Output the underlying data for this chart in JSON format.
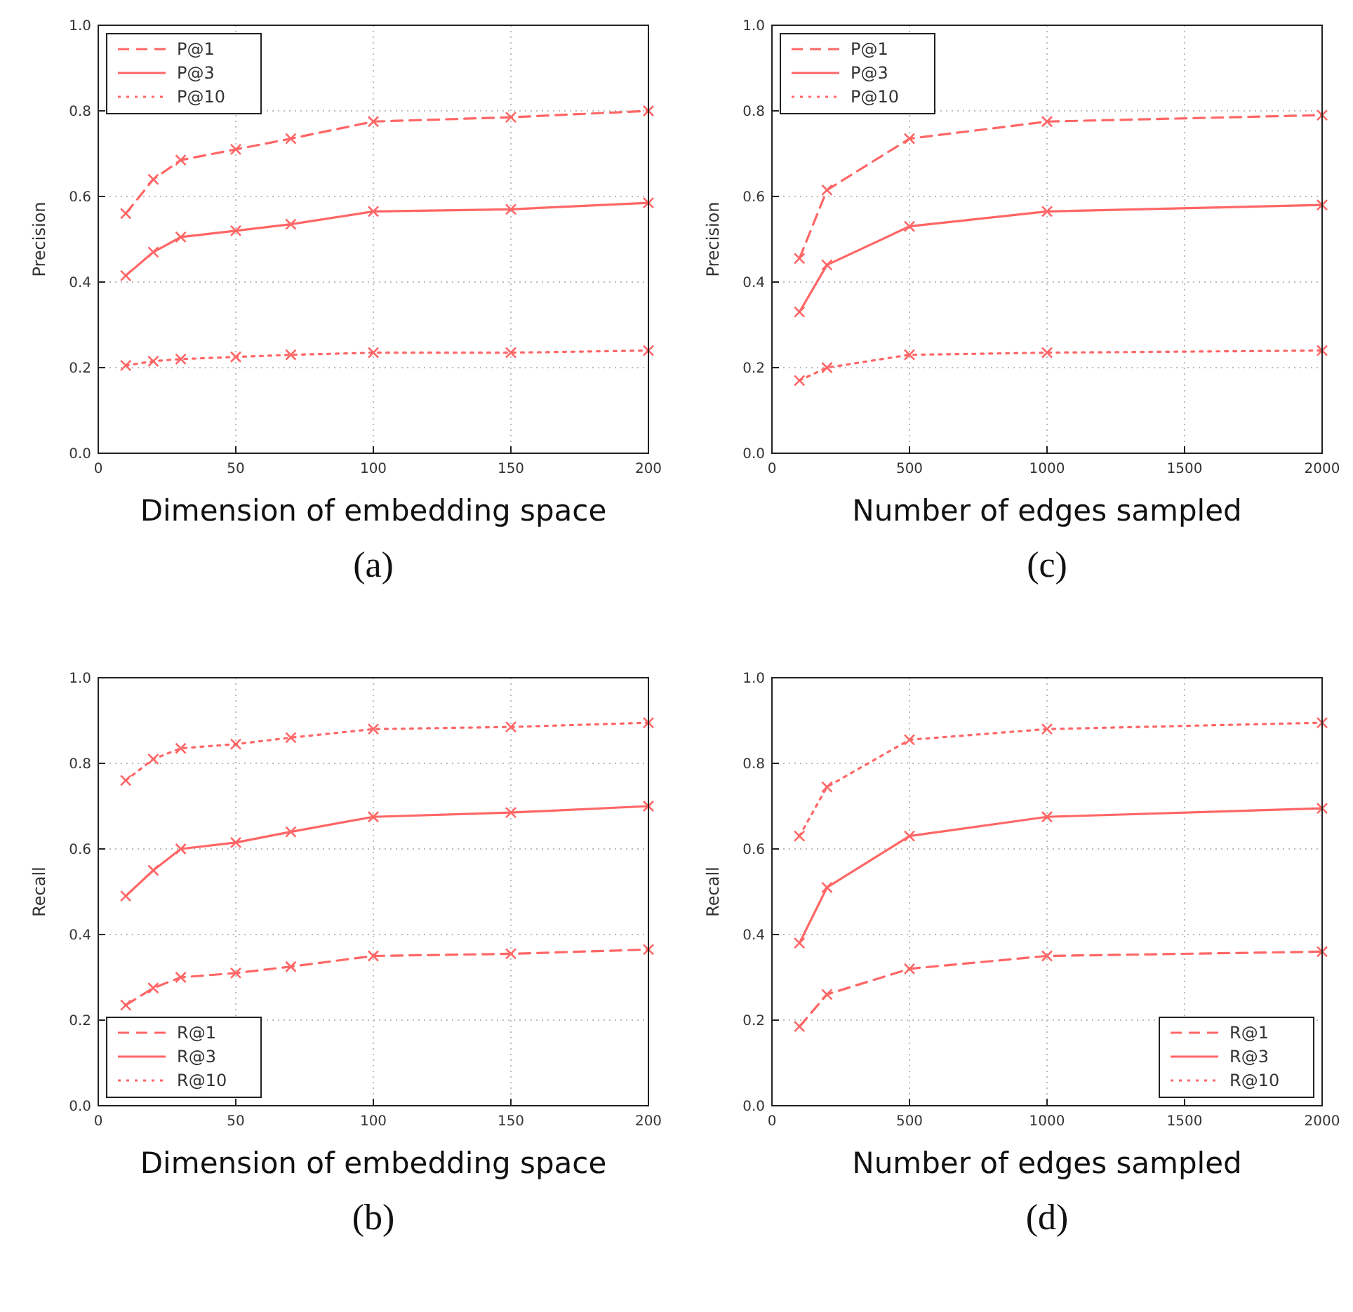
{
  "chart_data": [
    {
      "type": "line",
      "ylabel": "Precision",
      "xlabel": "Dimension of embedding space",
      "annotations": [
        "(a)"
      ],
      "x": [
        10,
        20,
        30,
        50,
        70,
        100,
        150,
        200
      ],
      "xlim": [
        0,
        200
      ],
      "xticks": [
        0,
        50,
        100,
        150,
        200
      ],
      "ylim": [
        0,
        1
      ],
      "yticks": [
        {
          "value": 0,
          "label": "0.0"
        },
        {
          "value": 0.2,
          "label": "0.2"
        },
        {
          "value": 0.4,
          "label": "0.4"
        },
        {
          "value": 0.6,
          "label": "0.6"
        },
        {
          "value": 0.8,
          "label": "0.8"
        },
        {
          "value": 1,
          "label": "1.0"
        }
      ],
      "grid": true,
      "legend": "top left",
      "marker": "cross",
      "series": [
        {
          "name": "P@1",
          "color": "#ff6666",
          "line_style": "dashed",
          "values": [
            0.56,
            0.64,
            0.685,
            0.71,
            0.735,
            0.775,
            0.785,
            0.8
          ]
        },
        {
          "name": "P@3",
          "color": "#ff6666",
          "line_style": "solid",
          "values": [
            0.415,
            0.47,
            0.505,
            0.52,
            0.535,
            0.565,
            0.57,
            0.585
          ]
        },
        {
          "name": "P@10",
          "color": "#ff6666",
          "line_style": "dotted",
          "values": [
            0.205,
            0.215,
            0.22,
            0.225,
            0.23,
            0.235,
            0.235,
            0.24
          ]
        }
      ]
    },
    {
      "type": "line",
      "ylabel": "Precision",
      "xlabel": "Number of edges sampled",
      "annotations": [
        "(c)"
      ],
      "x": [
        100,
        200,
        500,
        1000,
        2000
      ],
      "xlim": [
        0,
        2000
      ],
      "xticks": [
        0,
        500,
        1000,
        1500,
        2000
      ],
      "ylim": [
        0,
        1
      ],
      "yticks": [
        {
          "value": 0,
          "label": "0.0"
        },
        {
          "value": 0.2,
          "label": "0.2"
        },
        {
          "value": 0.4,
          "label": "0.4"
        },
        {
          "value": 0.6,
          "label": "0.6"
        },
        {
          "value": 0.8,
          "label": "0.8"
        },
        {
          "value": 1,
          "label": "1.0"
        }
      ],
      "grid": true,
      "legend": "top left",
      "marker": "cross",
      "series": [
        {
          "name": "P@1",
          "color": "#ff6666",
          "line_style": "dashed",
          "values": [
            0.455,
            0.615,
            0.735,
            0.775,
            0.79
          ]
        },
        {
          "name": "P@3",
          "color": "#ff6666",
          "line_style": "solid",
          "values": [
            0.33,
            0.44,
            0.53,
            0.565,
            0.58
          ]
        },
        {
          "name": "P@10",
          "color": "#ff6666",
          "line_style": "dotted",
          "values": [
            0.17,
            0.2,
            0.23,
            0.235,
            0.24
          ]
        }
      ]
    },
    {
      "type": "line",
      "ylabel": "Recall",
      "xlabel": "Dimension of embedding space",
      "annotations": [
        "(b)"
      ],
      "x": [
        10,
        20,
        30,
        50,
        70,
        100,
        150,
        200
      ],
      "xlim": [
        0,
        200
      ],
      "xticks": [
        0,
        50,
        100,
        150,
        200
      ],
      "ylim": [
        0,
        1
      ],
      "yticks": [
        {
          "value": 0,
          "label": "0.0"
        },
        {
          "value": 0.2,
          "label": "0.2"
        },
        {
          "value": 0.4,
          "label": "0.4"
        },
        {
          "value": 0.6,
          "label": "0.6"
        },
        {
          "value": 0.8,
          "label": "0.8"
        },
        {
          "value": 1,
          "label": "1.0"
        }
      ],
      "grid": true,
      "legend": "bottom left",
      "marker": "cross",
      "series": [
        {
          "name": "R@1",
          "color": "#ff6666",
          "line_style": "dashed",
          "values": [
            0.235,
            0.275,
            0.3,
            0.31,
            0.325,
            0.35,
            0.355,
            0.365
          ]
        },
        {
          "name": "R@3",
          "color": "#ff6666",
          "line_style": "solid",
          "values": [
            0.49,
            0.55,
            0.6,
            0.615,
            0.64,
            0.675,
            0.685,
            0.7
          ]
        },
        {
          "name": "R@10",
          "color": "#ff6666",
          "line_style": "dotted",
          "values": [
            0.76,
            0.81,
            0.835,
            0.845,
            0.86,
            0.88,
            0.885,
            0.895
          ]
        }
      ]
    },
    {
      "type": "line",
      "ylabel": "Recall",
      "xlabel": "Number of edges sampled",
      "annotations": [
        "(d)"
      ],
      "x": [
        100,
        200,
        500,
        1000,
        2000
      ],
      "xlim": [
        0,
        2000
      ],
      "xticks": [
        0,
        500,
        1000,
        1500,
        2000
      ],
      "ylim": [
        0,
        1
      ],
      "yticks": [
        {
          "value": 0,
          "label": "0.0"
        },
        {
          "value": 0.2,
          "label": "0.2"
        },
        {
          "value": 0.4,
          "label": "0.4"
        },
        {
          "value": 0.6,
          "label": "0.6"
        },
        {
          "value": 0.8,
          "label": "0.8"
        },
        {
          "value": 1,
          "label": "1.0"
        }
      ],
      "grid": true,
      "legend": "bottom right",
      "marker": "cross",
      "series": [
        {
          "name": "R@1",
          "color": "#ff6666",
          "line_style": "dashed",
          "values": [
            0.185,
            0.26,
            0.32,
            0.35,
            0.36
          ]
        },
        {
          "name": "R@3",
          "color": "#ff6666",
          "line_style": "solid",
          "values": [
            0.38,
            0.51,
            0.63,
            0.675,
            0.695
          ]
        },
        {
          "name": "R@10",
          "color": "#ff6666",
          "line_style": "dotted",
          "values": [
            0.63,
            0.745,
            0.855,
            0.88,
            0.895
          ]
        }
      ]
    }
  ]
}
